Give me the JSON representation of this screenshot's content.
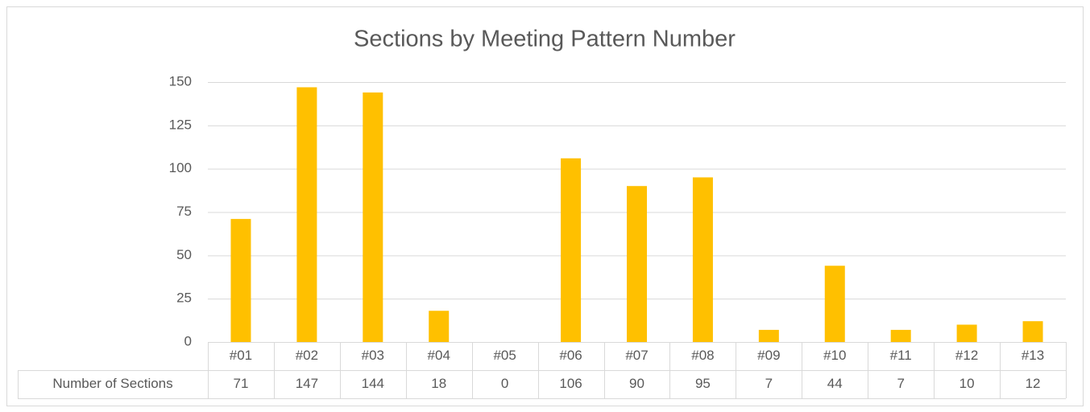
{
  "chart_data": {
    "type": "bar",
    "title": "Sections by Meeting Pattern Number",
    "categories": [
      "#01",
      "#02",
      "#03",
      "#04",
      "#05",
      "#06",
      "#07",
      "#08",
      "#09",
      "#10",
      "#11",
      "#12",
      "#13"
    ],
    "series": [
      {
        "name": "Number of Sections",
        "color": "#ffc000",
        "values": [
          71,
          147,
          144,
          18,
          0,
          106,
          90,
          95,
          7,
          44,
          7,
          10,
          12
        ]
      }
    ],
    "ylim": [
      0,
      150
    ],
    "yticks": [
      0,
      25,
      50,
      75,
      100,
      125,
      150
    ],
    "grid": true,
    "data_table": true
  }
}
